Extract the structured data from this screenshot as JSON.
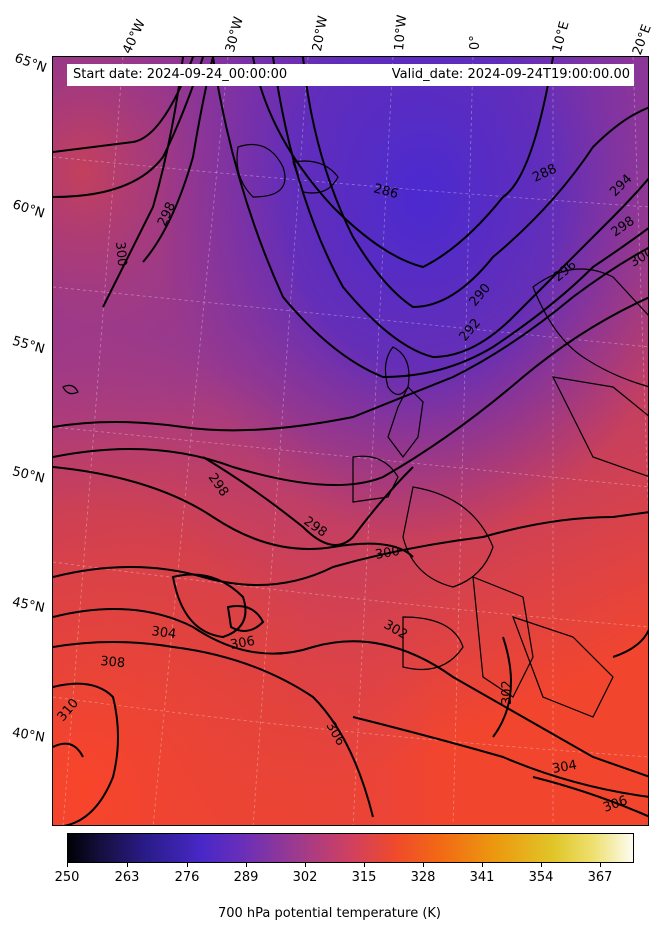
{
  "header": {
    "start_date": "Start date: 2024-09-24_00:00:00",
    "valid_date": "Valid_date: 2024-09-24T19:00:00.00"
  },
  "longitude_labels": [
    "40°W",
    "30°W",
    "20°W",
    "10°W",
    "0°",
    "10°E",
    "20°E"
  ],
  "latitude_labels": [
    "65°N",
    "60°N",
    "55°N",
    "50°N",
    "45°N",
    "40°N"
  ],
  "contour_labels": [
    "286",
    "288",
    "290",
    "292",
    "294",
    "296",
    "298",
    "298",
    "298",
    "298",
    "300",
    "300",
    "300",
    "302",
    "302",
    "304",
    "304",
    "306",
    "306",
    "306",
    "308",
    "310"
  ],
  "colorbar": {
    "ticks": [
      "250",
      "263",
      "276",
      "289",
      "302",
      "315",
      "328",
      "341",
      "354",
      "367"
    ],
    "label": "700 hPa potential temperature (K)",
    "colors": {
      "low": "#000004",
      "mid_low": "#4a28c8",
      "mid": "#d04060",
      "high_mid": "#f04a2c",
      "high": "#fcfcf0"
    }
  }
}
